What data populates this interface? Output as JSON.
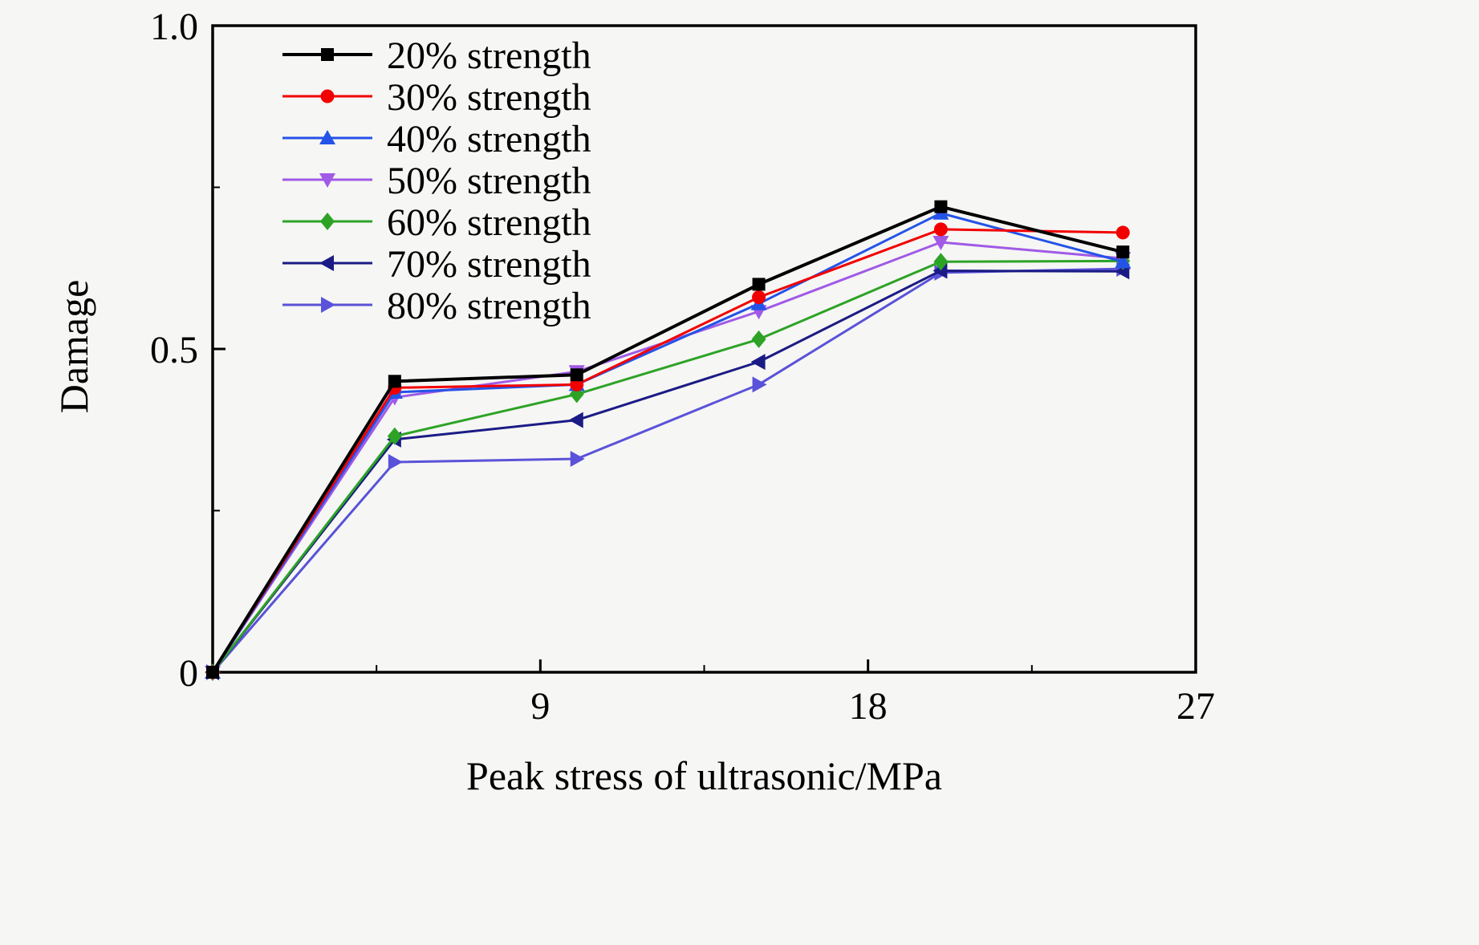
{
  "page": {
    "background": "#f6f6f4"
  },
  "chart_data": {
    "type": "line",
    "title": "",
    "xlabel": "Peak stress of ultrasonic/MPa",
    "ylabel": "Damage",
    "xlim": [
      0,
      27
    ],
    "ylim": [
      0,
      1.0
    ],
    "grid": false,
    "legend_position": "top-left",
    "x_ticks": [
      {
        "value": 9,
        "label": "9"
      },
      {
        "value": 18,
        "label": "18"
      },
      {
        "value": 27,
        "label": "27"
      }
    ],
    "x_minor_ticks": [
      4.5,
      13.5,
      22.5
    ],
    "y_ticks": [
      {
        "value": 0,
        "label": "0"
      },
      {
        "value": 0.5,
        "label": "0.5"
      },
      {
        "value": 1.0,
        "label": "1.0"
      }
    ],
    "y_minor_ticks": [
      0.25,
      0.75
    ],
    "x": [
      0,
      5,
      10,
      15,
      20,
      25
    ],
    "series": [
      {
        "name": "20% strength",
        "color": "#000000",
        "marker": "square",
        "values": [
          0,
          0.45,
          0.46,
          0.6,
          0.72,
          0.65
        ]
      },
      {
        "name": "30% strength",
        "color": "#f20000",
        "marker": "circle",
        "values": [
          0,
          0.44,
          0.445,
          0.58,
          0.685,
          0.68
        ]
      },
      {
        "name": "40% strength",
        "color": "#2453e8",
        "marker": "triangle-up",
        "values": [
          0,
          0.433,
          0.445,
          0.57,
          0.71,
          0.635
        ]
      },
      {
        "name": "50% strength",
        "color": "#a05ae6",
        "marker": "triangle-down",
        "values": [
          0,
          0.425,
          0.465,
          0.558,
          0.665,
          0.64
        ]
      },
      {
        "name": "60% strength",
        "color": "#2da326",
        "marker": "diamond",
        "values": [
          0,
          0.365,
          0.43,
          0.515,
          0.635,
          0.636
        ]
      },
      {
        "name": "70% strength",
        "color": "#1b1b86",
        "marker": "triangle-left",
        "values": [
          0,
          0.36,
          0.39,
          0.48,
          0.621,
          0.62
        ]
      },
      {
        "name": "80% strength",
        "color": "#5a52d8",
        "marker": "triangle-right",
        "values": [
          0,
          0.325,
          0.33,
          0.445,
          0.618,
          0.624
        ]
      }
    ]
  }
}
